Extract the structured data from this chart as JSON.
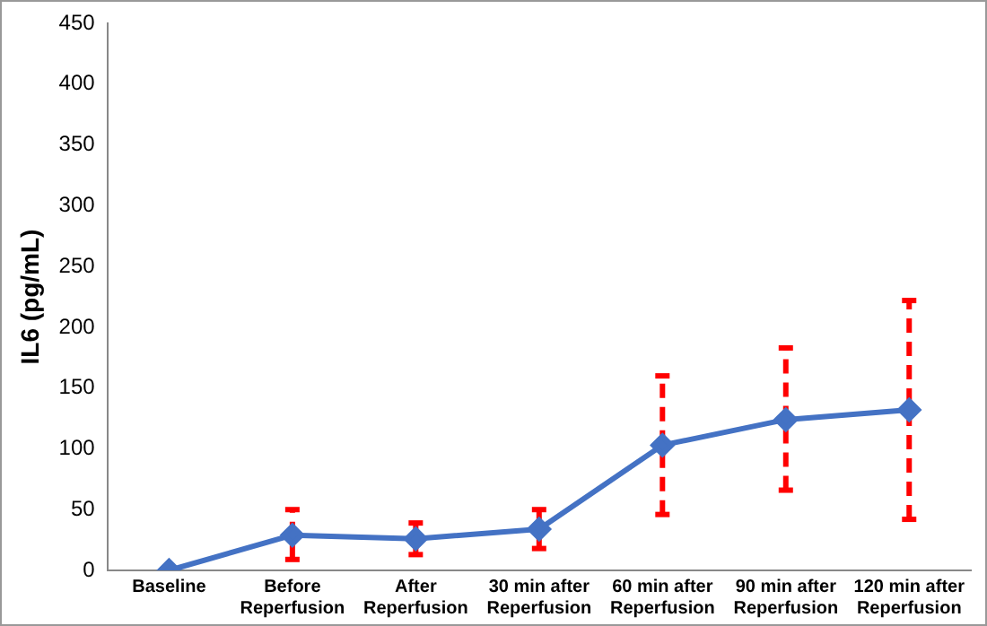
{
  "chart_data": {
    "type": "line",
    "ylabel": "IL6 (pg/mL)",
    "categories": [
      "Baseline",
      "Before Reperfusion",
      "After Reperfusion",
      "30 min after Reperfusion",
      "60 min after Reperfusion",
      "90 min after Reperfusion",
      "120 min after Reperfusion"
    ],
    "series": [
      {
        "color": "#4472c4",
        "values": [
          0,
          29,
          26,
          34,
          103,
          124,
          132
        ],
        "errors": [
          null,
          [
            9,
            50
          ],
          [
            13,
            39
          ],
          [
            18,
            50
          ],
          [
            46,
            160
          ],
          [
            66,
            183
          ],
          [
            42,
            222
          ]
        ]
      }
    ],
    "ylim": [
      0,
      450
    ],
    "yticks": [
      0,
      50,
      100,
      150,
      200,
      250,
      300,
      350,
      400,
      450
    ],
    "grid": false,
    "legend": false,
    "marker": "diamond",
    "line_style": "solid"
  }
}
